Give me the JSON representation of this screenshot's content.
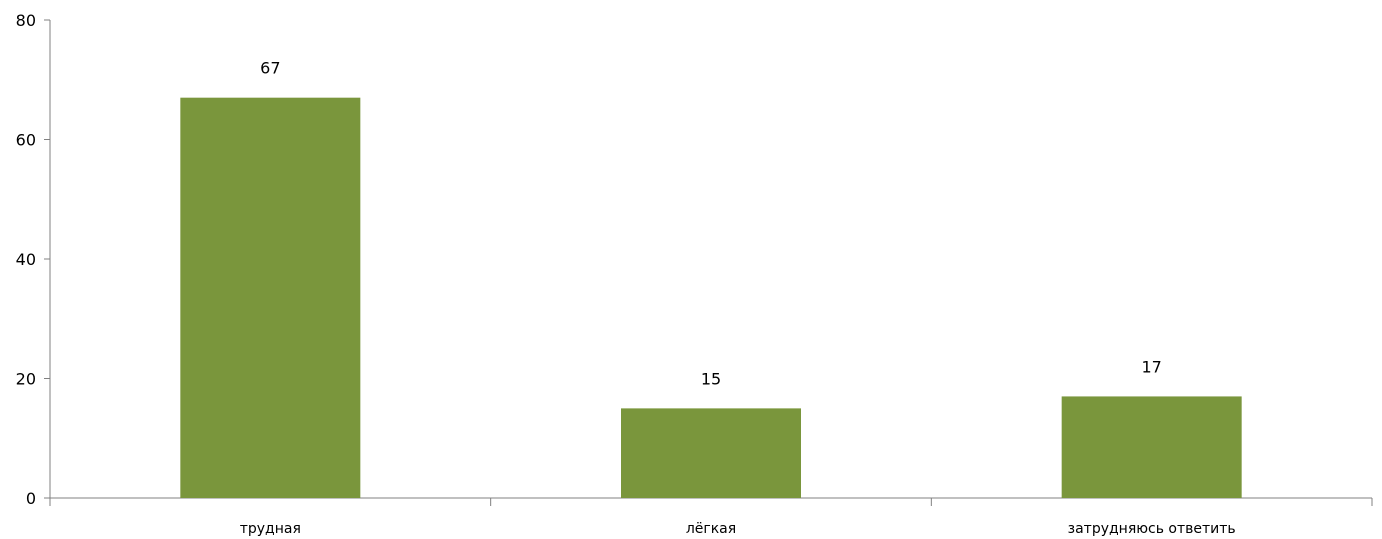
{
  "chart_data": {
    "type": "bar",
    "categories": [
      "трудная",
      "лёгкая",
      "затрудняюсь ответить"
    ],
    "values": [
      67,
      15,
      17
    ],
    "data_labels": [
      "67",
      "15",
      "17"
    ],
    "title": "",
    "xlabel": "",
    "ylabel": "",
    "ylim": [
      0,
      80
    ],
    "yticks": [
      "0",
      "20",
      "40",
      "60",
      "80"
    ],
    "grid": false,
    "legend": "none",
    "bar_color": "#7a963c"
  }
}
